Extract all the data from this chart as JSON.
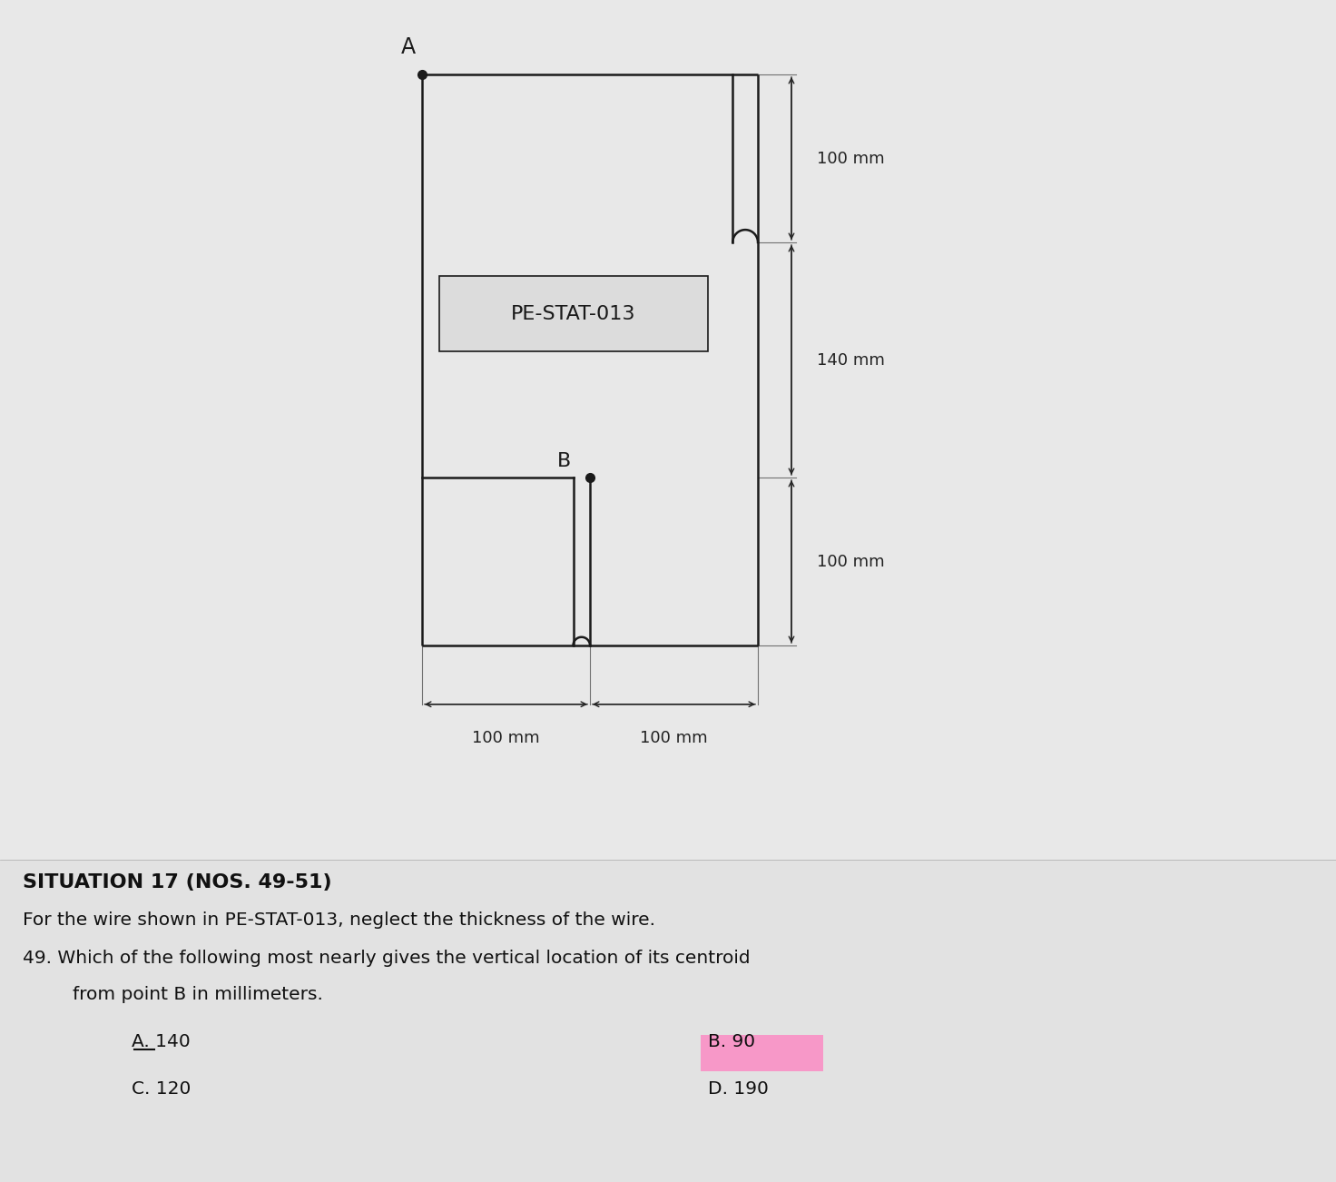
{
  "bg_color": "#c8c8c8",
  "paper_color": "#e0e0e0",
  "wire_color": "#1a1a1a",
  "dim_color": "#222222",
  "text_color": "#111111",
  "title_bold": "SITUATION 17 (NOS. 49-51)",
  "line1": "For the wire shown in PE-STAT-013, neglect the thickness of the wire.",
  "line2": "49. Which of the following most nearly gives the vertical location of its centroid",
  "line3": "from point B in millimeters.",
  "choice_A": "A. 140",
  "choice_B": "B. 90",
  "choice_C": "C. 120",
  "choice_D": "D. 190",
  "label_A": "A",
  "label_B": "B",
  "diagram_label": "PE-STAT-013",
  "dim_100_top": "100 mm",
  "dim_140_mid": "140 mm",
  "dim_100_bot": "100 mm",
  "dim_100_horiz1": "100 mm",
  "dim_100_horiz2": "100 mm",
  "highlight_color": "#ff80c0",
  "fig_width": 14.72,
  "fig_height": 13.02,
  "dpi": 100
}
